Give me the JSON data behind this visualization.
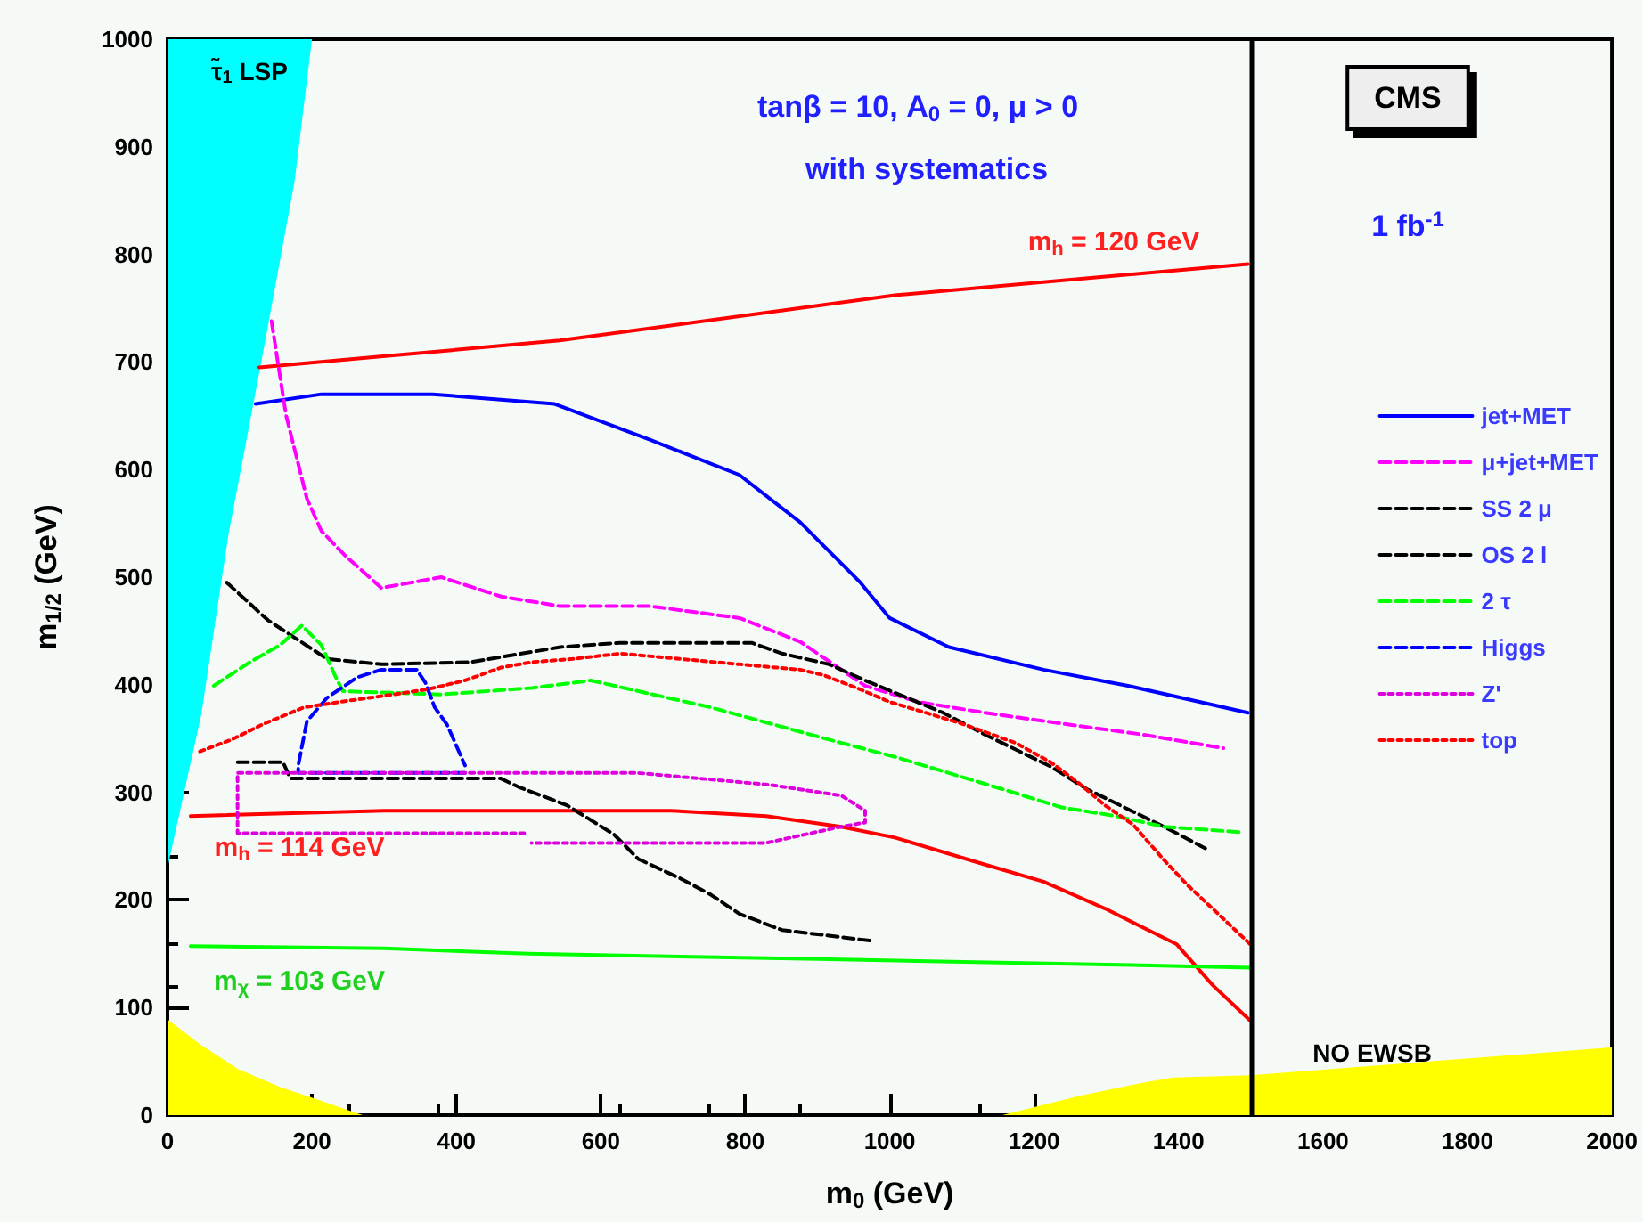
{
  "chart_data": {
    "type": "line",
    "xlabel": "m$_{0}$ (GeV)",
    "ylabel": "m$_{1/2}$ (GeV)",
    "xlim": [
      0,
      2000
    ],
    "ylim": [
      0,
      1000
    ],
    "xticks": [
      0,
      200,
      400,
      600,
      800,
      1000,
      1200,
      1400,
      1600,
      1800,
      2000
    ],
    "yticks": [
      0,
      100,
      200,
      300,
      400,
      500,
      600,
      700,
      800,
      900,
      1000
    ],
    "marker": "none",
    "legend": "right",
    "ref_lines": [
      {
        "axis": "x",
        "value": 1500,
        "color": "#000000",
        "line_style": "solid"
      }
    ],
    "annotations": [
      "τ̃$_{1}$ LSP",
      "tanβ = 10, A$_{0}$ = 0, μ > 0",
      "with systematics",
      "CMS",
      "1 fb$^{-1}$",
      "m$_{h}$ = 120 GeV",
      "m$_{h}$ = 114 GeV",
      "m$_{χ}$ = 103 GeV",
      "NO EWSB"
    ],
    "series": [
      {
        "type": "area",
        "color": "#00ffff",
        "x": [
          0,
          200,
          176,
          131,
          84,
          47,
          0
        ],
        "values": [
          1000,
          1000,
          868,
          704,
          538,
          373,
          230
        ]
      },
      {
        "type": "area",
        "color": "#ffff00",
        "x": [
          0,
          47,
          97,
          156,
          206,
          270,
          1156,
          1263,
          1350,
          1392,
          1500,
          1750,
          2000
        ],
        "values": [
          89,
          65,
          43,
          26,
          15,
          0,
          0,
          18,
          30,
          35,
          37,
          50,
          63
        ]
      },
      {
        "color": "#ff0000",
        "line_style": "solid",
        "x": [
          127,
          295,
          543,
          1007,
          1496
        ],
        "values": [
          695,
          705,
          720,
          762,
          791
        ]
      },
      {
        "color": "#ff0000",
        "line_style": "solid",
        "x": [
          32,
          300,
          697,
          829,
          933,
          1007,
          1131,
          1213,
          1298,
          1397,
          1447,
          1499
        ],
        "values": [
          278,
          283,
          283,
          278,
          268,
          258,
          233,
          217,
          192,
          159,
          121,
          88
        ]
      },
      {
        "color": "#00ff00",
        "line_style": "solid",
        "x": [
          32,
          300,
          499,
          901,
          1300,
          1500
        ],
        "values": [
          157,
          155,
          150,
          145,
          140,
          137
        ]
      },
      {
        "name": "jet+MET",
        "color": "#0000ff",
        "line_style": "solid",
        "x": [
          122,
          213,
          367,
          536,
          667,
          792,
          876,
          958,
          1000,
          1082,
          1213,
          1330,
          1496
        ],
        "values": [
          661,
          670,
          670,
          661,
          628,
          595,
          551,
          496,
          462,
          435,
          414,
          399,
          374
        ]
      },
      {
        "name": "μ+jet+MET",
        "color": "#ff00ff",
        "line_style": "dashed",
        "x": [
          144,
          164,
          193,
          213,
          246,
          296,
          379,
          462,
          544,
          668,
          792,
          876,
          966,
          1040,
          1132,
          1248,
          1347,
          1462
        ],
        "values": [
          738,
          651,
          573,
          543,
          520,
          490,
          500,
          482,
          473,
          473,
          462,
          440,
          399,
          384,
          374,
          363,
          354,
          341
        ]
      },
      {
        "name": "SS 2 μ",
        "color": "#000000",
        "line_style": "dashed",
        "x": [
          82,
          139,
          221,
          296,
          420,
          544,
          627,
          809,
          851,
          916,
          966,
          1074,
          1131,
          1223,
          1273,
          1380,
          1437
        ],
        "values": [
          495,
          460,
          424,
          419,
          421,
          435,
          439,
          439,
          429,
          419,
          404,
          374,
          354,
          324,
          303,
          268,
          248
        ]
      },
      {
        "name": "OS 2 l",
        "color": "#000000",
        "line_style": "dashed",
        "x": [
          97,
          160,
          170,
          461,
          486,
          553,
          618,
          652,
          710,
          752,
          792,
          851,
          975
        ],
        "values": [
          328,
          328,
          313,
          313,
          305,
          288,
          261,
          238,
          220,
          205,
          187,
          172,
          162
        ]
      },
      {
        "name": "2 τ",
        "color": "#00ff00",
        "line_style": "dashed",
        "x": [
          64,
          114,
          156,
          186,
          213,
          233,
          243,
          379,
          504,
          586,
          652,
          752,
          834,
          916,
          1007,
          1032,
          1156,
          1238,
          1313,
          1380,
          1486
        ],
        "values": [
          399,
          421,
          437,
          455,
          437,
          407,
          394,
          391,
          397,
          404,
          394,
          379,
          364,
          349,
          333,
          328,
          303,
          286,
          278,
          268,
          263
        ]
      },
      {
        "name": "Higgs",
        "color": "#0000ff",
        "line_style": "dashed",
        "x": [
          412,
          181,
          181,
          193,
          221,
          263,
          296,
          345,
          357,
          370,
          387,
          412
        ],
        "values": [
          318,
          318,
          325,
          366,
          388,
          407,
          414,
          414,
          402,
          379,
          363,
          325
        ]
      },
      {
        "name": "Z'",
        "color": "#dd00dd",
        "line_style": "dotted",
        "x": [
          494,
          97,
          97,
          652,
          735,
          834,
          933,
          966,
          966,
          925,
          829,
          504
        ],
        "values": [
          262,
          262,
          318,
          318,
          313,
          307,
          297,
          283,
          272,
          267,
          253,
          253
        ]
      },
      {
        "name": "top",
        "color": "#ff0000",
        "line_style": "dotted",
        "x": [
          45,
          89,
          131,
          189,
          238,
          313,
          362,
          412,
          462,
          504,
          561,
          627,
          710,
          792,
          876,
          908,
          958,
          1000,
          1050,
          1099,
          1174,
          1223,
          1263,
          1298,
          1337,
          1380,
          1412,
          1447,
          1499
        ],
        "values": [
          338,
          349,
          363,
          379,
          384,
          391,
          396,
          404,
          416,
          421,
          424,
          429,
          424,
          419,
          414,
          409,
          396,
          384,
          374,
          364,
          346,
          328,
          308,
          288,
          270,
          237,
          214,
          192,
          159
        ]
      }
    ]
  }
}
